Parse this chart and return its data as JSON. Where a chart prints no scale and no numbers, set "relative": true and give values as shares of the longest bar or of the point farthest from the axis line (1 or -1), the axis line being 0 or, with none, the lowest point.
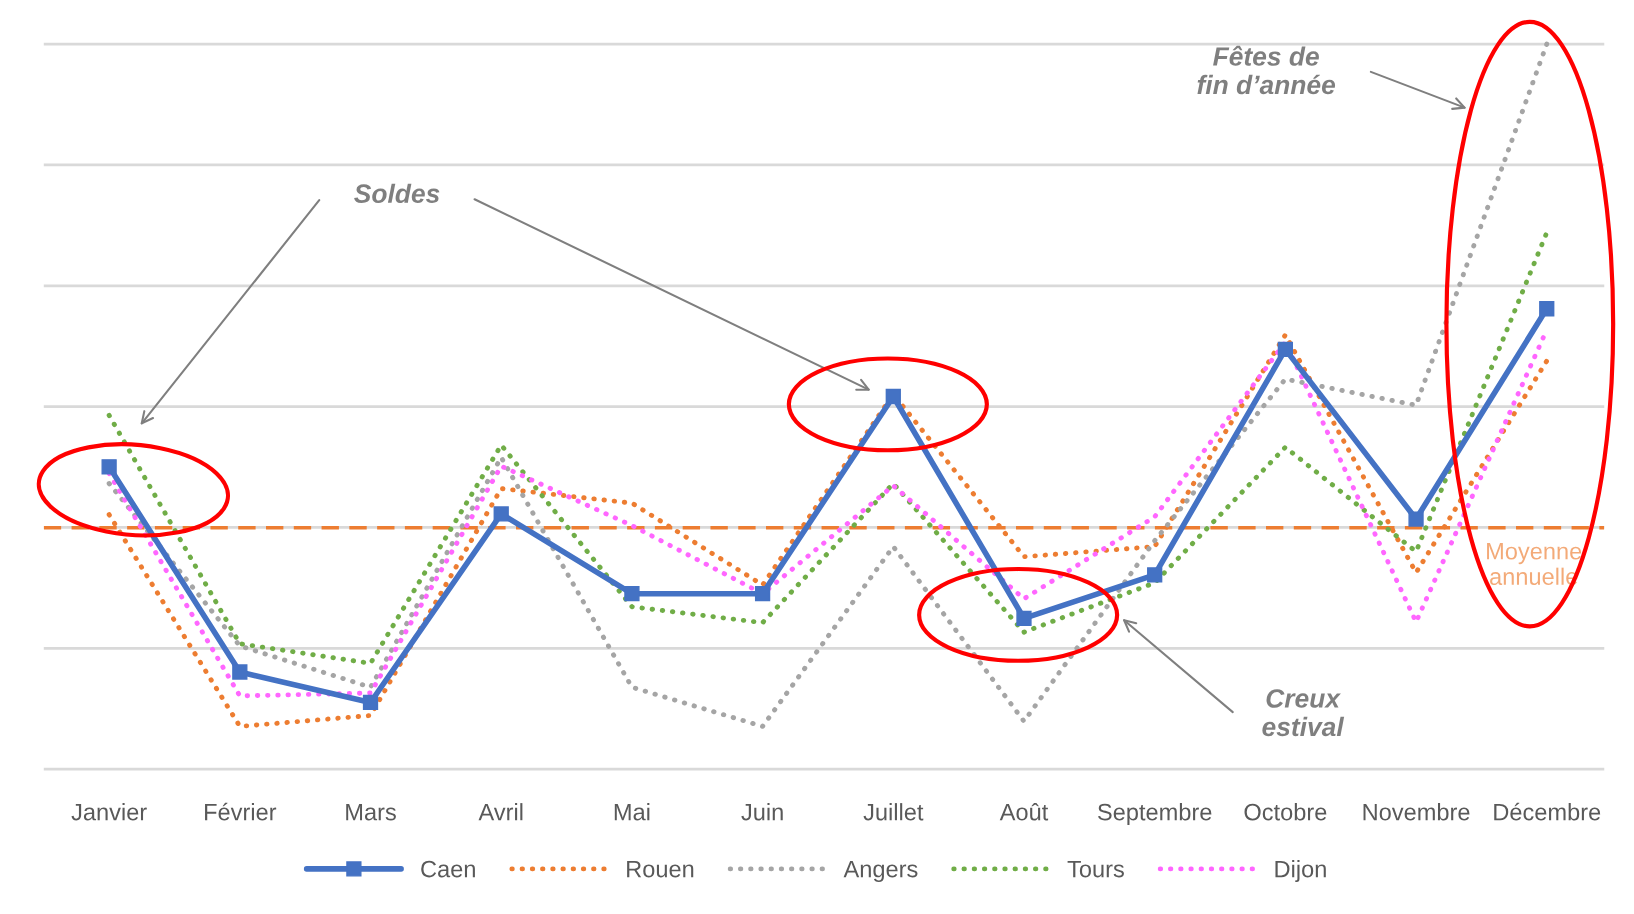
{
  "chart_data": {
    "type": "line",
    "relative": true,
    "grid": "y",
    "legend": "bottom",
    "categories": [
      "Janvier",
      "Février",
      "Mars",
      "Avril",
      "Mai",
      "Juin",
      "Juillet",
      "Août",
      "Septembre",
      "Octobre",
      "Novembre",
      "Décembre"
    ],
    "series": [
      {
        "name": "Caen",
        "color": "#4472c4",
        "marker": "square",
        "line_style": "solid",
        "values": [
          0.417,
          0.134,
          0.092,
          0.352,
          0.242,
          0.242,
          0.514,
          0.208,
          0.268,
          0.579,
          0.345,
          0.635
        ]
      },
      {
        "name": "Rouen",
        "color": "#ed7d31",
        "marker": "none",
        "line_style": "dotted",
        "values": [
          0.351,
          0.059,
          0.074,
          0.387,
          0.367,
          0.254,
          0.517,
          0.293,
          0.307,
          0.599,
          0.271,
          0.563
        ]
      },
      {
        "name": "Angers",
        "color": "#a5a5a5",
        "marker": "none",
        "line_style": "dotted",
        "values": [
          0.394,
          0.17,
          0.113,
          0.43,
          0.113,
          0.059,
          0.307,
          0.066,
          0.315,
          0.538,
          0.502,
          1.0
        ]
      },
      {
        "name": "Tours",
        "color": "#70ad47",
        "marker": "none",
        "line_style": "dotted",
        "values": [
          0.488,
          0.173,
          0.146,
          0.447,
          0.224,
          0.202,
          0.394,
          0.189,
          0.257,
          0.444,
          0.3,
          0.74
        ]
      },
      {
        "name": "Dijon",
        "color": "#ff66ff",
        "marker": "none",
        "line_style": "dotted",
        "values": [
          0.408,
          0.101,
          0.105,
          0.418,
          0.336,
          0.242,
          0.391,
          0.235,
          0.348,
          0.589,
          0.203,
          0.606
        ]
      }
    ],
    "ref_lines": [
      {
        "axis": "y",
        "value": 0.333,
        "label": "Moyenne\nannuelle",
        "color": "#ed7d31",
        "line_style": "dashed"
      }
    ],
    "annotations": [
      "Soldes",
      "Creux\nestival",
      "Fêtes de\nfin d’année"
    ]
  }
}
